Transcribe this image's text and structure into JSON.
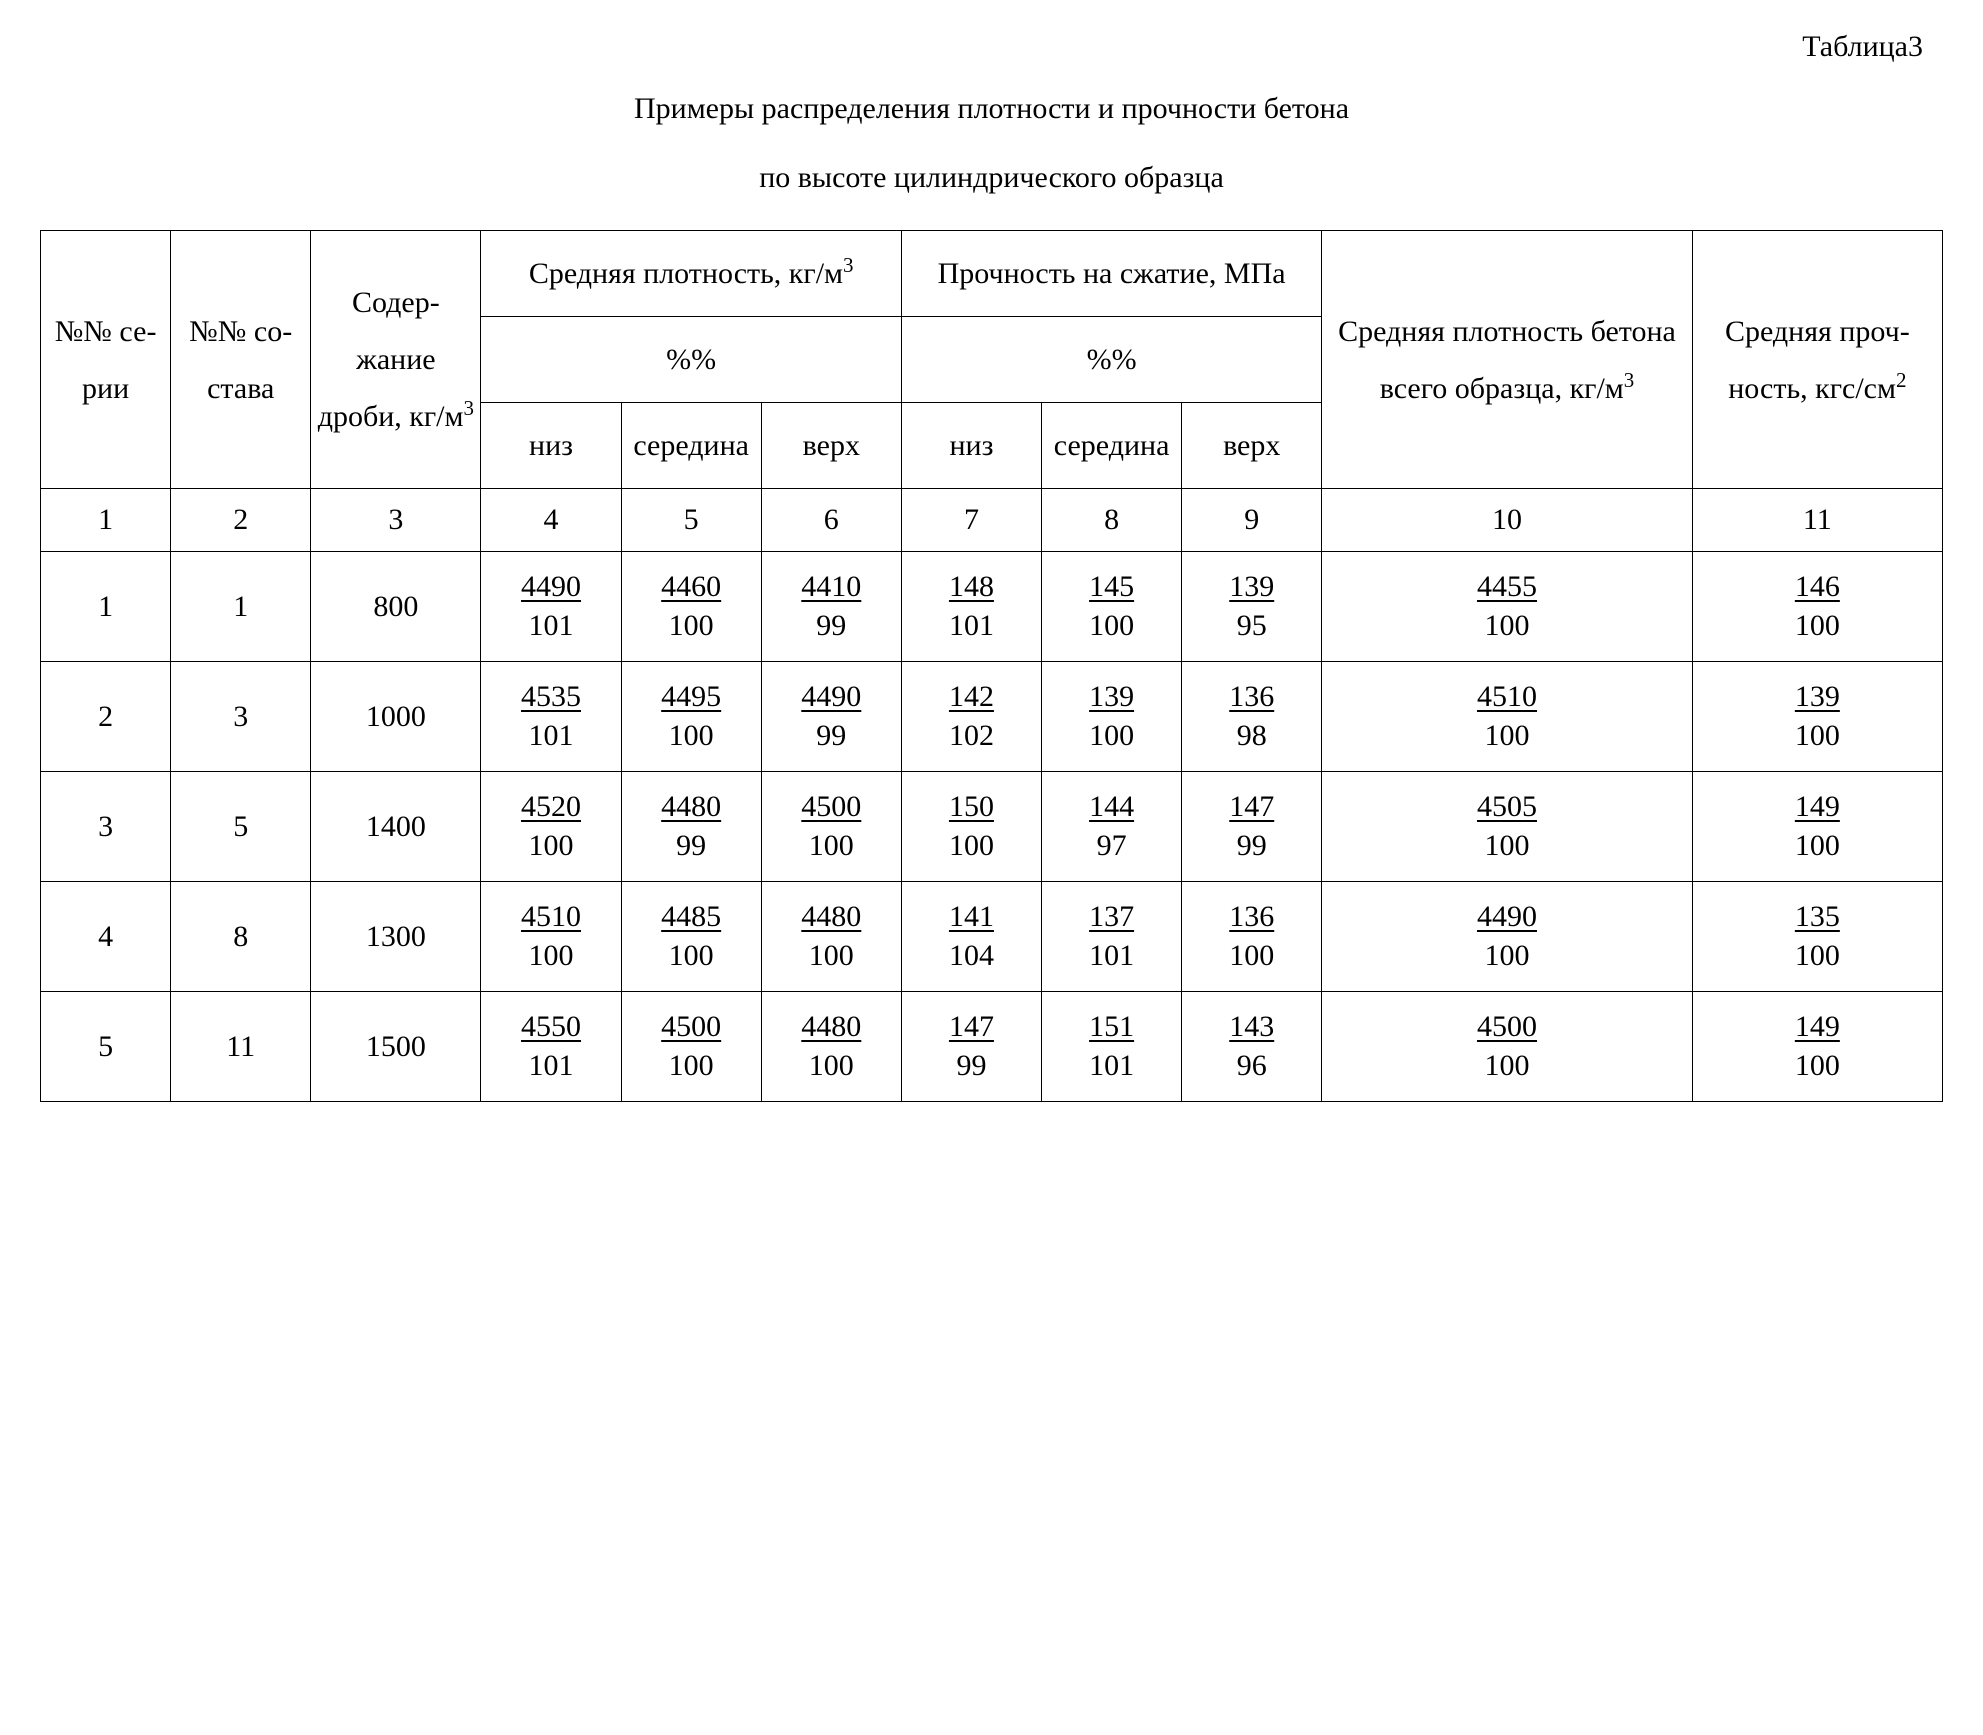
{
  "table_label": "Таблица3",
  "title_line1": "Примеры распределения плотности и прочности бетона",
  "title_line2": "по высоте цилиндрического образца",
  "headers": {
    "series": "№№ се­рии",
    "composition": "№№ со­става",
    "shot_content": "Содер­жание дроби, кг/м",
    "density": "Средняя плот­ность, кг/м",
    "strength": "Прочность на сжа­тие, МПа",
    "percent": "%%",
    "bottom": "низ",
    "middle": "сере­дина",
    "top": "верх",
    "avg_density": "Средняя плот­ность бетона всего образца, кг/м",
    "avg_strength": "Средняя проч­ность, кгс/см"
  },
  "col_numbers": [
    "1",
    "2",
    "3",
    "4",
    "5",
    "6",
    "7",
    "8",
    "9",
    "10",
    "11"
  ],
  "rows": [
    {
      "series": "1",
      "comp": "1",
      "shot": "800",
      "d": [
        {
          "n": "4490",
          "d": "101"
        },
        {
          "n": "4460",
          "d": "100"
        },
        {
          "n": "4410",
          "d": "99"
        }
      ],
      "s": [
        {
          "n": "148",
          "d": "101"
        },
        {
          "n": "145",
          "d": "100"
        },
        {
          "n": "139",
          "d": "95"
        }
      ],
      "avg_d": {
        "n": "4455",
        "d": "100"
      },
      "avg_s": {
        "n": "146",
        "d": "100"
      }
    },
    {
      "series": "2",
      "comp": "3",
      "shot": "1000",
      "d": [
        {
          "n": "4535",
          "d": "101"
        },
        {
          "n": "4495",
          "d": "100"
        },
        {
          "n": "4490",
          "d": "99"
        }
      ],
      "s": [
        {
          "n": "142",
          "d": "102"
        },
        {
          "n": "139",
          "d": "100"
        },
        {
          "n": "136",
          "d": "98"
        }
      ],
      "avg_d": {
        "n": "4510",
        "d": "100"
      },
      "avg_s": {
        "n": "139",
        "d": "100"
      }
    },
    {
      "series": "3",
      "comp": "5",
      "shot": "1400",
      "d": [
        {
          "n": "4520",
          "d": "100"
        },
        {
          "n": "4480",
          "d": "99"
        },
        {
          "n": "4500",
          "d": "100"
        }
      ],
      "s": [
        {
          "n": "150",
          "d": "100"
        },
        {
          "n": "144",
          "d": "97"
        },
        {
          "n": "147",
          "d": "99"
        }
      ],
      "avg_d": {
        "n": "4505",
        "d": "100"
      },
      "avg_s": {
        "n": "149",
        "d": "100"
      }
    },
    {
      "series": "4",
      "comp": "8",
      "shot": "1300",
      "d": [
        {
          "n": "4510",
          "d": "100"
        },
        {
          "n": "4485",
          "d": "100"
        },
        {
          "n": "4480",
          "d": "100"
        }
      ],
      "s": [
        {
          "n": "141",
          "d": "104"
        },
        {
          "n": "137",
          "d": "101"
        },
        {
          "n": "136",
          "d": "100"
        }
      ],
      "avg_d": {
        "n": "4490",
        "d": "100"
      },
      "avg_s": {
        "n": "135",
        "d": "100"
      }
    },
    {
      "series": "5",
      "comp": "11",
      "shot": "1500",
      "d": [
        {
          "n": "4550",
          "d": "101"
        },
        {
          "n": "4500",
          "d": "100"
        },
        {
          "n": "4480",
          "d": "100"
        }
      ],
      "s": [
        {
          "n": "147",
          "d": "99"
        },
        {
          "n": "151",
          "d": "101"
        },
        {
          "n": "143",
          "d": "96"
        }
      ],
      "avg_d": {
        "n": "4500",
        "d": "100"
      },
      "avg_s": {
        "n": "149",
        "d": "100"
      }
    }
  ],
  "layout": {
    "font_family": "Times New Roman",
    "font_size_pt": 30,
    "border_color": "#000000",
    "background_color": "#ffffff"
  }
}
